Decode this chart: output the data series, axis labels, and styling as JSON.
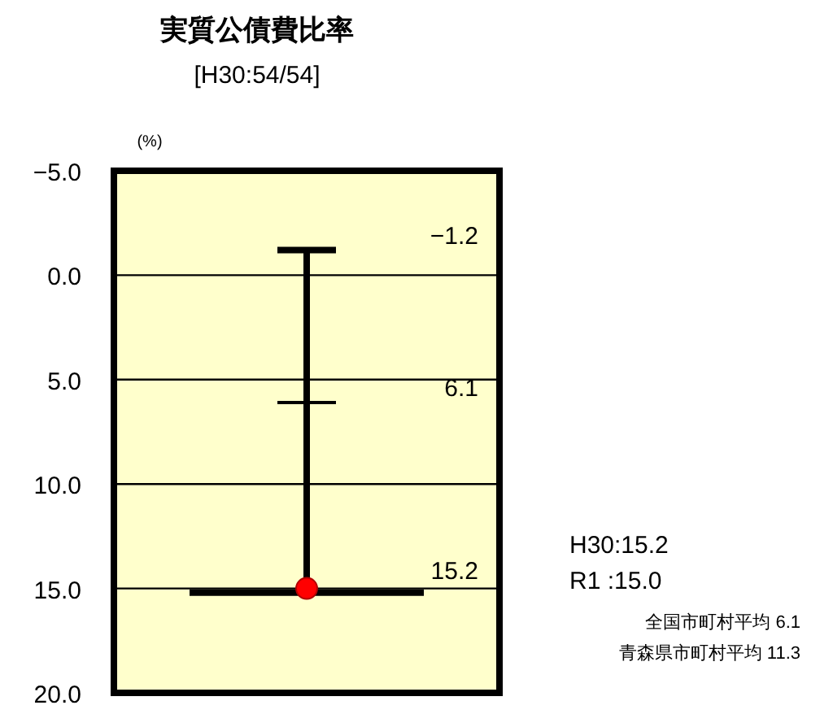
{
  "chart_data": {
    "type": "scatter",
    "title": "実質公債費比率",
    "subtitle": "[H30:54/54]",
    "ylabel": "(%)",
    "categories": [
      null
    ],
    "ylim": [
      20.0,
      -5.0
    ],
    "yticks": [
      {
        "value": -5,
        "label": "−5.0"
      },
      {
        "value": 0,
        "label": "0.0"
      },
      {
        "value": 5,
        "label": "5.0"
      },
      {
        "value": 10,
        "label": "10.0"
      },
      {
        "value": 15,
        "label": "15.0"
      },
      {
        "value": 20,
        "label": "20.0"
      }
    ],
    "grid": "y",
    "series": [
      {
        "color": "#ff0000",
        "values": [
          15.0
        ],
        "marker": "circle",
        "errors": [
          [
            -1.2,
            15.2
          ]
        ]
      }
    ],
    "ref_lines": [
      {
        "axis": "y",
        "value": 6.1,
        "label": "6.1"
      }
    ],
    "annotations": [
      "−1.2",
      "15.2",
      "H30:15.2",
      "R1  :15.0",
      "全国市町村平均  6.1",
      "青森県市町村平均  11.3"
    ]
  }
}
